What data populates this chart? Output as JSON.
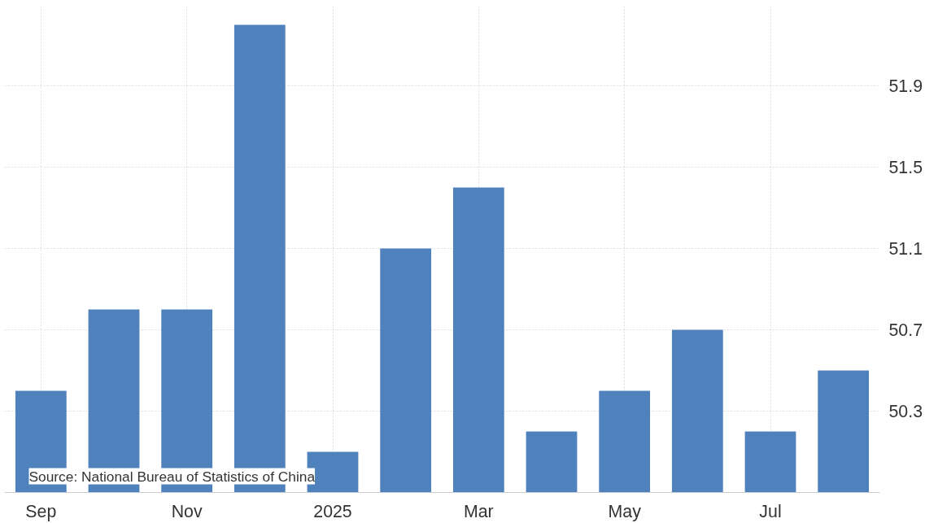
{
  "chart_data": {
    "type": "bar",
    "categories": [
      "Sep",
      null,
      "Nov",
      null,
      "2025",
      null,
      "Mar",
      null,
      "May",
      null,
      "Jul",
      null
    ],
    "values": [
      50.4,
      50.8,
      50.8,
      52.2,
      50.1,
      51.1,
      51.4,
      50.2,
      50.4,
      50.7,
      50.2,
      50.5
    ],
    "color": "#4f81bd",
    "ylim": [
      49.9,
      52.3
    ],
    "yticks": [
      50.3,
      50.7,
      51.1,
      51.5,
      51.9
    ],
    "grid": true,
    "annotations": [
      "Source: National Bureau of Statistics of China"
    ]
  }
}
